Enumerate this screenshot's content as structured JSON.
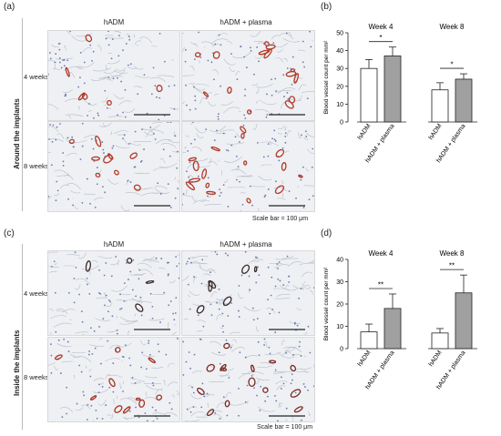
{
  "panels": {
    "a": {
      "letter": "(a)"
    },
    "b": {
      "letter": "(b)"
    },
    "c": {
      "letter": "(c)"
    },
    "d": {
      "letter": "(d)"
    }
  },
  "columns": [
    "hADM",
    "hADM + plasma"
  ],
  "rows": [
    "4 weeks",
    "8 weeks"
  ],
  "side_labels": {
    "top": "Around the implants",
    "bottom": "Inside the implants"
  },
  "scale_note": "Scale bar = 100 μm",
  "chart_data": [
    {
      "type": "bar",
      "ylabel": "Blood vessel count per mm²",
      "ylim": [
        0,
        50
      ],
      "yticks": [
        0,
        10,
        20,
        30,
        40,
        50
      ],
      "groups": [
        {
          "title": "Week 4",
          "categories": [
            "hADM",
            "hADM + plasma"
          ],
          "values": [
            30,
            37
          ],
          "errors": [
            5,
            5
          ],
          "significance": "*"
        },
        {
          "title": "Week 8",
          "categories": [
            "hADM",
            "hADM + plasma"
          ],
          "values": [
            18,
            24
          ],
          "errors": [
            4,
            3
          ],
          "significance": "*"
        }
      ],
      "colors": {
        "hADM": "#ffffff",
        "hADM + plasma": "#a0a0a0"
      }
    },
    {
      "type": "bar",
      "ylabel": "Blood vessel count per mm²",
      "ylim": [
        0,
        40
      ],
      "yticks": [
        0,
        10,
        20,
        30,
        40
      ],
      "groups": [
        {
          "title": "Week 4",
          "categories": [
            "hADM",
            "hADM + plasma"
          ],
          "values": [
            7.5,
            18
          ],
          "errors": [
            3.5,
            6.5
          ],
          "significance": "**"
        },
        {
          "title": "Week 8",
          "categories": [
            "hADM",
            "hADM + plasma"
          ],
          "values": [
            7,
            25
          ],
          "errors": [
            2,
            8
          ],
          "significance": "**"
        }
      ],
      "colors": {
        "hADM": "#ffffff",
        "hADM + plasma": "#a0a0a0"
      }
    }
  ]
}
